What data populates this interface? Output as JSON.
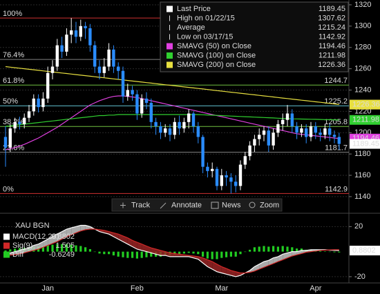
{
  "chart_data": [
    {
      "type": "candlestick",
      "open": [
        1196,
        1186,
        1204,
        1210,
        1208,
        1214,
        1220,
        1232,
        1224,
        1232,
        1256,
        1262,
        1282,
        1276,
        1292,
        1296,
        1290,
        1300,
        1298,
        1282,
        1262,
        1256,
        1262,
        1278,
        1262,
        1258,
        1234,
        1240,
        1236,
        1218,
        1232,
        1228,
        1210,
        1206,
        1200,
        1204,
        1198,
        1210,
        1204,
        1210,
        1218,
        1206,
        1196,
        1168,
        1164,
        1166,
        1150,
        1160,
        1158,
        1154,
        1150,
        1170,
        1178,
        1188,
        1194,
        1198,
        1202,
        1188,
        1200,
        1208,
        1212,
        1218,
        1206,
        1200,
        1204,
        1196,
        1206,
        1200,
        1198,
        1204,
        1198,
        1196
      ],
      "high": [
        1206,
        1208,
        1214,
        1215,
        1218,
        1226,
        1236,
        1236,
        1238,
        1262,
        1268,
        1288,
        1290,
        1298,
        1307.62,
        1304,
        1306,
        1304,
        1302,
        1286,
        1268,
        1270,
        1284,
        1282,
        1266,
        1262,
        1246,
        1244,
        1240,
        1236,
        1238,
        1232,
        1214,
        1210,
        1208,
        1208,
        1214,
        1216,
        1214,
        1222,
        1220,
        1210,
        1198,
        1172,
        1172,
        1168,
        1166,
        1164,
        1162,
        1160,
        1174,
        1182,
        1192,
        1198,
        1204,
        1206,
        1206,
        1204,
        1212,
        1218,
        1226,
        1222,
        1210,
        1208,
        1208,
        1210,
        1210,
        1204,
        1208,
        1208,
        1202,
        1200
      ],
      "low": [
        1168,
        1182,
        1200,
        1203,
        1204,
        1210,
        1216,
        1219,
        1220,
        1228,
        1250,
        1258,
        1270,
        1272,
        1284,
        1284,
        1286,
        1288,
        1276,
        1256,
        1250,
        1252,
        1258,
        1256,
        1250,
        1228,
        1230,
        1230,
        1212,
        1214,
        1222,
        1204,
        1198,
        1194,
        1196,
        1192,
        1194,
        1198,
        1200,
        1204,
        1200,
        1190,
        1162,
        1158,
        1158,
        1146,
        1146,
        1150,
        1142.92,
        1144,
        1146,
        1166,
        1174,
        1182,
        1188,
        1192,
        1182,
        1184,
        1196,
        1202,
        1206,
        1200,
        1194,
        1196,
        1190,
        1192,
        1194,
        1192,
        1194,
        1192,
        1190,
        1184
      ],
      "close": [
        1186,
        1204,
        1210,
        1208,
        1214,
        1220,
        1232,
        1224,
        1232,
        1256,
        1262,
        1282,
        1276,
        1292,
        1296,
        1290,
        1300,
        1298,
        1282,
        1262,
        1256,
        1262,
        1278,
        1262,
        1258,
        1234,
        1240,
        1236,
        1218,
        1232,
        1228,
        1210,
        1206,
        1200,
        1204,
        1198,
        1210,
        1204,
        1210,
        1218,
        1206,
        1196,
        1168,
        1164,
        1166,
        1150,
        1160,
        1158,
        1154,
        1150,
        1170,
        1178,
        1188,
        1194,
        1198,
        1202,
        1188,
        1200,
        1208,
        1212,
        1218,
        1206,
        1200,
        1204,
        1196,
        1206,
        1200,
        1198,
        1204,
        1198,
        1196,
        1189.45
      ],
      "up_color": "#ffffff",
      "down_color": "#2a8cff",
      "series": [
        {
          "name": "SMAVG (50) on Close",
          "color": "#e040e0",
          "last_value": 1194.46,
          "values": [
            1184,
            1185,
            1186,
            1187.5,
            1189,
            1191,
            1193,
            1195,
            1197.5,
            1200,
            1202.5,
            1205,
            1208,
            1211,
            1214,
            1217,
            1220,
            1223,
            1226,
            1228,
            1230,
            1231.5,
            1233,
            1234,
            1234.5,
            1234.5,
            1234,
            1233.5,
            1233,
            1232,
            1231,
            1230,
            1229,
            1228,
            1227,
            1226,
            1225,
            1224,
            1223,
            1222,
            1221,
            1220,
            1219,
            1218,
            1217,
            1216,
            1215,
            1214,
            1213,
            1212,
            1211,
            1210,
            1209,
            1208,
            1207,
            1206,
            1205,
            1204,
            1203,
            1202,
            1201,
            1200,
            1199,
            1198.5,
            1198,
            1197.5,
            1197,
            1196.5,
            1196,
            1195.5,
            1195,
            1194.46
          ]
        },
        {
          "name": "SMAVG (100) on Close",
          "color": "#30d030",
          "last_value": 1211.98,
          "values": [
            1206,
            1206.5,
            1207,
            1207.5,
            1208,
            1208.5,
            1209,
            1209.5,
            1210,
            1210.5,
            1211,
            1211.5,
            1212,
            1212.5,
            1213,
            1213.5,
            1214,
            1214.5,
            1215,
            1215.5,
            1216,
            1216,
            1216.5,
            1216.5,
            1217,
            1217,
            1217,
            1217,
            1217,
            1217,
            1217,
            1217,
            1217,
            1217,
            1217,
            1217,
            1217,
            1217,
            1217,
            1217,
            1217,
            1217,
            1216.8,
            1216.6,
            1216.4,
            1216.2,
            1216,
            1215.8,
            1215.6,
            1215.4,
            1215.2,
            1215,
            1214.8,
            1214.6,
            1214.4,
            1214.2,
            1214,
            1213.8,
            1213.6,
            1213.4,
            1213.2,
            1213,
            1212.9,
            1212.8,
            1212.7,
            1212.6,
            1212.5,
            1212.4,
            1212.3,
            1212.2,
            1212.1,
            1211.98
          ]
        },
        {
          "name": "SMAVG (200) on Close",
          "color": "#e8e040",
          "last_value": 1226.36,
          "values": [
            1262,
            1261.5,
            1261,
            1260.5,
            1260,
            1259.5,
            1259,
            1258.5,
            1258,
            1257.5,
            1257,
            1256.5,
            1256,
            1255.5,
            1255,
            1254.5,
            1254,
            1253.5,
            1253,
            1252.5,
            1252,
            1251.5,
            1251,
            1250.5,
            1250,
            1249.5,
            1249,
            1248.5,
            1248,
            1247.5,
            1247,
            1246.5,
            1246,
            1245.5,
            1245,
            1244.5,
            1244,
            1243.5,
            1243,
            1242.5,
            1242,
            1241.5,
            1241,
            1240.5,
            1240,
            1239.5,
            1239,
            1238.5,
            1238,
            1237.5,
            1237,
            1236.5,
            1236,
            1235.5,
            1235,
            1234.5,
            1234,
            1233.5,
            1233,
            1232.5,
            1232,
            1231.5,
            1231,
            1230.5,
            1230,
            1229.5,
            1229,
            1228.5,
            1228,
            1227.5,
            1227,
            1226.36
          ]
        }
      ],
      "legend": [
        {
          "name": "Last Price",
          "value": 1189.45
        },
        {
          "name": "High on 01/22/15",
          "value": 1307.62
        },
        {
          "name": "Average",
          "value": 1215.24
        },
        {
          "name": "Low on 03/17/15",
          "value": 1142.92
        }
      ],
      "fib_levels": [
        {
          "label": "100%",
          "value": 1307.6,
          "color": "#d03030"
        },
        {
          "label": "76.4%",
          "value": 1268.7,
          "color": "#808080"
        },
        {
          "label": "61.8%",
          "value": 1244.7,
          "color": "#70c040"
        },
        {
          "label": "50%",
          "value": 1225.2,
          "color": "#60c0d0"
        },
        {
          "label": "38.2%",
          "value": 1205.8,
          "color": "#70c040"
        },
        {
          "label": "23.6%",
          "value": 1181.7,
          "color": "#808080"
        },
        {
          "label": "0%",
          "value": 1142.9,
          "color": "#d03030"
        }
      ],
      "ylim": [
        1136.7,
        1324.5
      ],
      "yticks": [
        1140,
        1160,
        1180,
        1200,
        1220,
        1240,
        1260,
        1280,
        1300,
        1320
      ],
      "grid": true
    },
    {
      "type": "macd",
      "title": "XAU BGN",
      "categories": [
        null,
        null,
        null,
        null,
        null,
        null,
        null,
        null,
        null,
        "Jan",
        null,
        null,
        null,
        null,
        null,
        null,
        null,
        null,
        null,
        null,
        null,
        null,
        null,
        null,
        null,
        null,
        null,
        null,
        "Feb",
        null,
        null,
        null,
        null,
        null,
        null,
        null,
        null,
        null,
        null,
        null,
        null,
        null,
        null,
        null,
        null,
        null,
        "Mar",
        null,
        null,
        null,
        null,
        null,
        null,
        null,
        null,
        null,
        null,
        null,
        null,
        null,
        null,
        null,
        null,
        null,
        null,
        null,
        "Apr",
        null,
        null,
        null,
        null,
        null
      ],
      "series": [
        {
          "name": "MACD(12,26)",
          "color": "#ffffff",
          "last_value": 0.8802,
          "values": [
            -2,
            -1,
            0,
            1,
            2,
            3,
            5,
            6,
            8,
            10,
            12,
            14,
            16,
            18,
            19,
            20,
            21,
            21,
            20,
            18,
            16,
            15,
            14,
            12,
            10,
            8,
            6,
            4,
            2,
            1,
            0,
            -1,
            -2,
            -3,
            -3,
            -4,
            -4,
            -4,
            -4,
            -4,
            -5,
            -6,
            -9,
            -12,
            -14,
            -16,
            -17,
            -18,
            -19,
            -20,
            -19,
            -17,
            -15,
            -12,
            -10,
            -8,
            -7,
            -5,
            -4,
            -2,
            -1,
            0,
            0,
            1,
            1,
            1.5,
            1.5,
            1.5,
            1.5,
            1.2,
            1,
            0.8802
          ]
        },
        {
          "name": "Sig(9)",
          "color": "#d02828",
          "last_value": 1.505,
          "values": [
            -3,
            -2.8,
            -2.4,
            -1.8,
            -1,
            0,
            1,
            2,
            3.5,
            5,
            6.5,
            8,
            10,
            12,
            13.5,
            15,
            16.5,
            17.5,
            18,
            18,
            17.5,
            17,
            16,
            15,
            14,
            12.5,
            11,
            9,
            7.5,
            6,
            4.5,
            3,
            2,
            1,
            0,
            -1,
            -1.5,
            -2,
            -2.5,
            -3,
            -3.5,
            -4,
            -5,
            -6.5,
            -8,
            -10,
            -12,
            -13.5,
            -15,
            -16,
            -17,
            -17,
            -16.5,
            -15.5,
            -14,
            -12.5,
            -11,
            -9.5,
            -8,
            -6.5,
            -5,
            -3.5,
            -2.5,
            -1.5,
            -0.5,
            0,
            0.5,
            1,
            1.2,
            1.4,
            1.5,
            1.505
          ]
        },
        {
          "name": "Diff",
          "color": "#22cc22",
          "last_value": -0.6249,
          "style": "bar",
          "values": [
            1,
            1.8,
            2.4,
            2.8,
            3,
            3,
            4,
            4,
            4.5,
            5,
            5.5,
            6,
            6,
            6,
            5.5,
            5,
            4.5,
            3.5,
            2,
            0,
            -1.5,
            -2,
            -2,
            -3,
            -4,
            -4.5,
            -5,
            -5,
            -5.5,
            -5,
            -4.5,
            -4,
            -4,
            -4,
            -3,
            -3,
            -2.5,
            -2,
            -1.5,
            -1,
            -1.5,
            -2,
            -4,
            -5.5,
            -6,
            -6,
            -5,
            -4.5,
            -4,
            -4,
            -2,
            0,
            1.5,
            3.5,
            4,
            4.5,
            4,
            4.5,
            4,
            4.5,
            4,
            3.5,
            2.5,
            2.5,
            1.5,
            1.5,
            1,
            0.5,
            0.3,
            -0.2,
            -0.5,
            -0.6249
          ]
        }
      ],
      "ylim": [
        -25,
        29
      ],
      "yticks": [
        -20,
        20
      ],
      "grid": true
    }
  ],
  "toolbar": [
    "Track",
    "Annotate",
    "News",
    "Zoom"
  ]
}
